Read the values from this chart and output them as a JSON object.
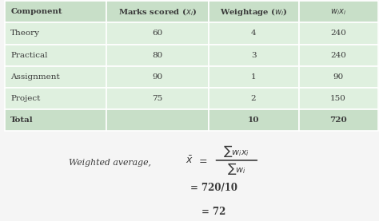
{
  "header": [
    "Component",
    "Marks scored ($x_i$)",
    "Weightage ($w_i$)",
    "$w_i x_i$"
  ],
  "rows": [
    [
      "Theory",
      "60",
      "4",
      "240"
    ],
    [
      "Practical",
      "80",
      "3",
      "240"
    ],
    [
      "Assignment",
      "90",
      "1",
      "90"
    ],
    [
      "Project",
      "75",
      "2",
      "150"
    ],
    [
      "Total",
      "",
      "10",
      "720"
    ]
  ],
  "header_bg": "#c8dfc8",
  "row_bg": "#dff0df",
  "total_bg": "#c8dfc8",
  "text_color": "#3a3a3a",
  "formula_label": "Weighted average,",
  "formula_line1_num": "\\sum w_i x_i",
  "formula_line1_den": "\\sum w_i",
  "formula_line2": "= 720/10",
  "formula_line3": "= 72",
  "xbar": "\\bar{x}",
  "background_color": "#f5f5f5"
}
